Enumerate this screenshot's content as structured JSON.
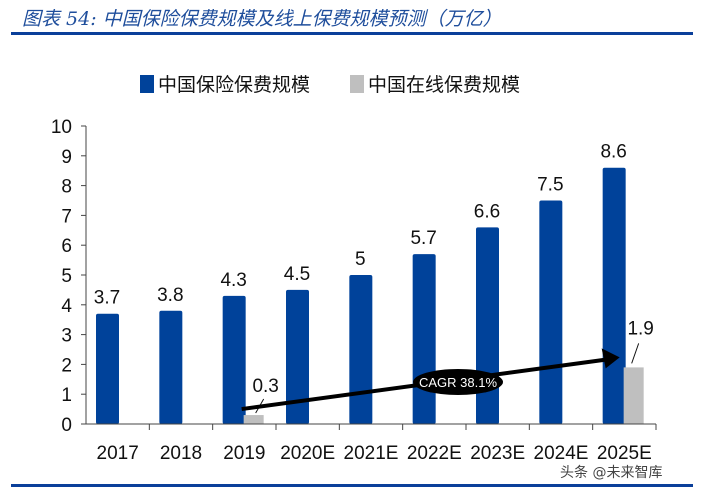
{
  "title": "图表 54:  中国保险保费规模及线上保费规模预测（万亿）",
  "watermark": "头条 @未来智库",
  "colors": {
    "primary": "#00429a",
    "online": "#bfbfbf",
    "rule": "#0a3f9a"
  },
  "chart_data": {
    "type": "bar",
    "categories": [
      "2017",
      "2018",
      "2019",
      "2020E",
      "2021E",
      "2022E",
      "2023E",
      "2024E",
      "2025E"
    ],
    "series": [
      {
        "name": "中国保险保费规模",
        "values": [
          3.7,
          3.8,
          4.3,
          4.5,
          5,
          5.7,
          6.6,
          7.5,
          8.6
        ],
        "labels": [
          "3.7",
          "3.8",
          "4.3",
          "4.5",
          "5",
          "5.7",
          "6.6",
          "7.5",
          "8.6"
        ]
      },
      {
        "name": "中国在线保费规模",
        "values": [
          null,
          null,
          0.3,
          null,
          null,
          null,
          null,
          null,
          1.9
        ],
        "labels": [
          null,
          null,
          "0.3",
          null,
          null,
          null,
          null,
          null,
          "1.9"
        ]
      }
    ],
    "yticks": [
      "0",
      "1",
      "2",
      "3",
      "4",
      "5",
      "6",
      "7",
      "8",
      "9",
      "10"
    ],
    "ylim": [
      0,
      10
    ],
    "legend": "top",
    "grid": false,
    "annotation": {
      "text": "CAGR 38.1%",
      "from": "2019",
      "to": "2025E"
    }
  }
}
